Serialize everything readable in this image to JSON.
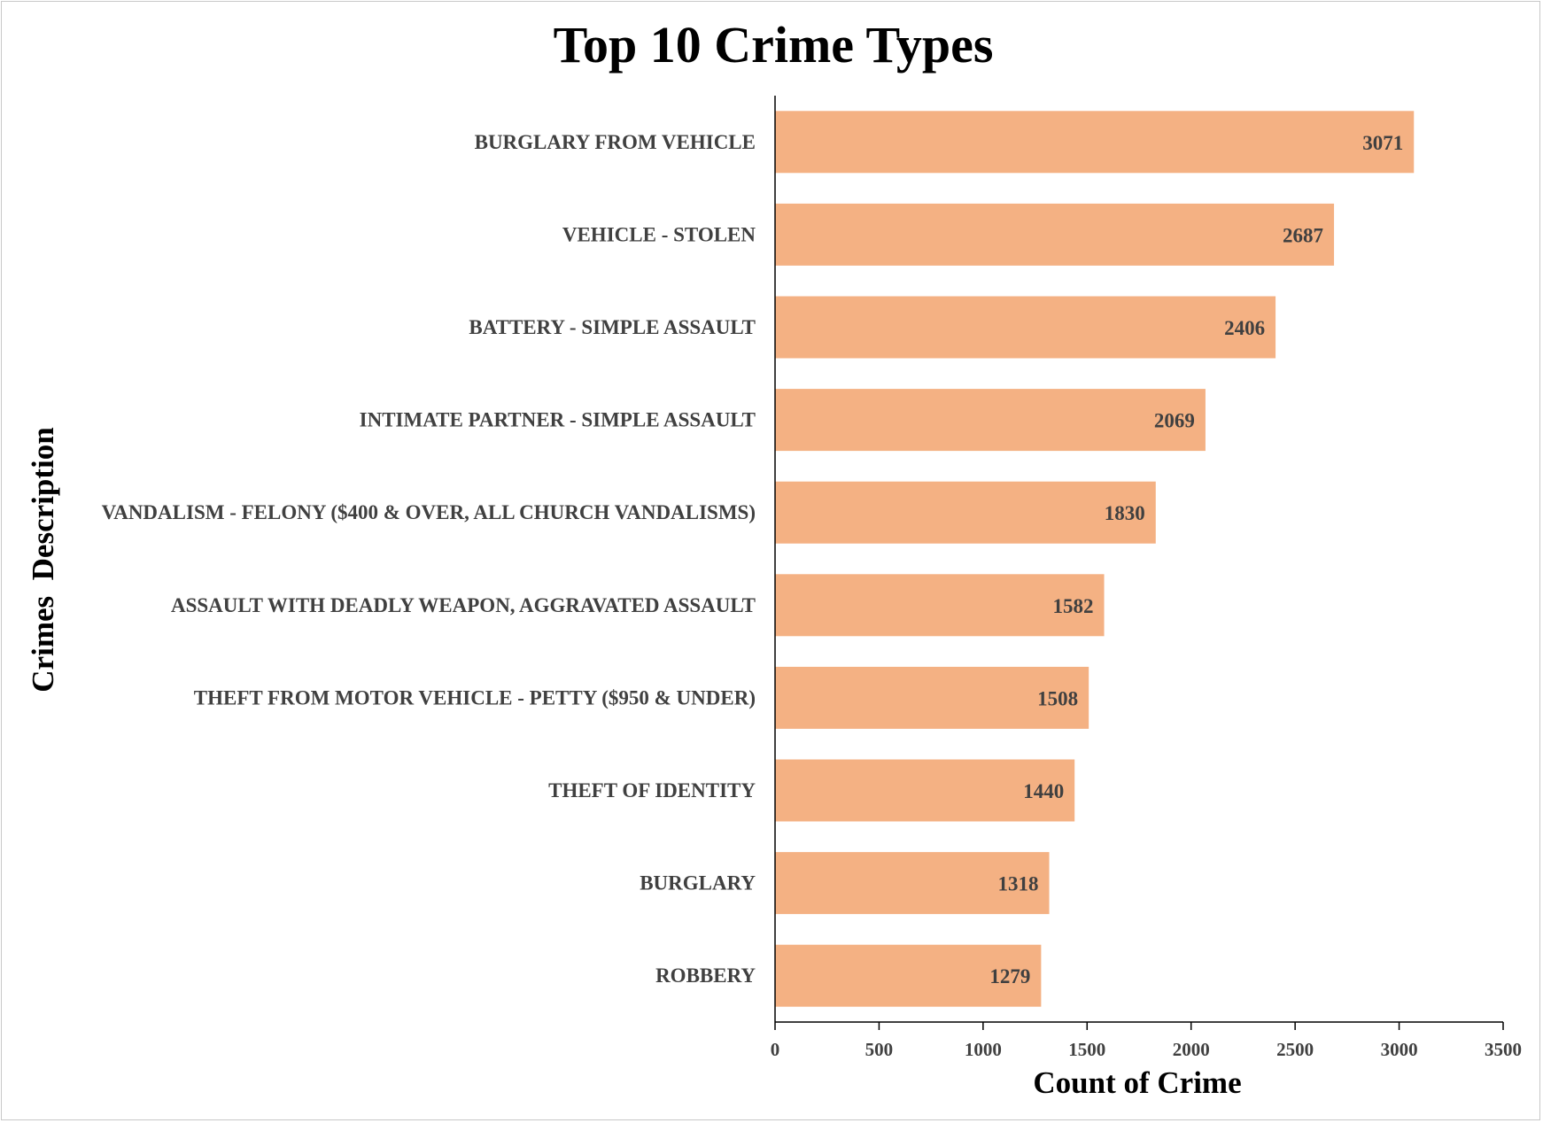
{
  "chart_data": {
    "type": "bar",
    "orientation": "horizontal",
    "title": "Top 10 Crime Types",
    "xlabel": "Count of Crime",
    "ylabel": "Crimes  Description",
    "categories": [
      "BURGLARY FROM VEHICLE",
      "VEHICLE - STOLEN",
      "BATTERY - SIMPLE ASSAULT",
      "INTIMATE PARTNER - SIMPLE ASSAULT",
      "VANDALISM - FELONY ($400 & OVER, ALL CHURCH VANDALISMS)",
      "ASSAULT WITH DEADLY WEAPON, AGGRAVATED ASSAULT",
      "THEFT FROM MOTOR VEHICLE - PETTY ($950 & UNDER)",
      "THEFT OF IDENTITY",
      "BURGLARY",
      "ROBBERY"
    ],
    "values": [
      3071,
      2687,
      2406,
      2069,
      1830,
      1582,
      1508,
      1440,
      1318,
      1279
    ],
    "xlim": [
      0,
      3500
    ],
    "xticks": [
      0,
      500,
      1000,
      1500,
      2000,
      2500,
      3000,
      3500
    ],
    "bar_color": "#F4B183",
    "data_labels": true,
    "grid": false,
    "legend": "none"
  }
}
